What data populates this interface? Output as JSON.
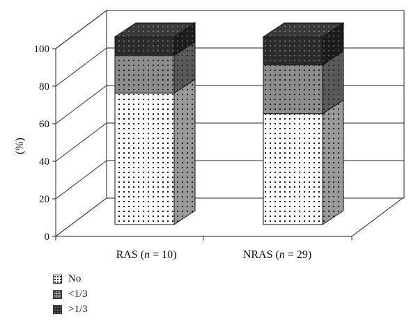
{
  "chart_data": {
    "type": "bar",
    "stacked": true,
    "three_d": true,
    "categories": [
      "RAS (n = 10)",
      "NRAS (n = 29)"
    ],
    "category_labels": [
      {
        "prefix": "RAS (",
        "italic": "n",
        "suffix": " = 10)"
      },
      {
        "prefix": "NRAS (",
        "italic": "n",
        "suffix": " = 29)"
      }
    ],
    "series": [
      {
        "name": "No",
        "values": [
          70,
          59
        ],
        "color": "#ffffff",
        "dot": "#111111"
      },
      {
        "name": "<1/3",
        "values": [
          20,
          26
        ],
        "color": "#8c8c8c",
        "dot": "#222222"
      },
      {
        "name": ">1/3",
        "values": [
          10,
          15
        ],
        "color": "#2b2b2b",
        "dot": "#6a6a6a"
      }
    ],
    "ylabel": "(%)",
    "ylim": [
      0,
      100
    ],
    "yticks": [
      0,
      20,
      40,
      60,
      80,
      100
    ],
    "grid": true,
    "legend_position": "bottom-left"
  }
}
